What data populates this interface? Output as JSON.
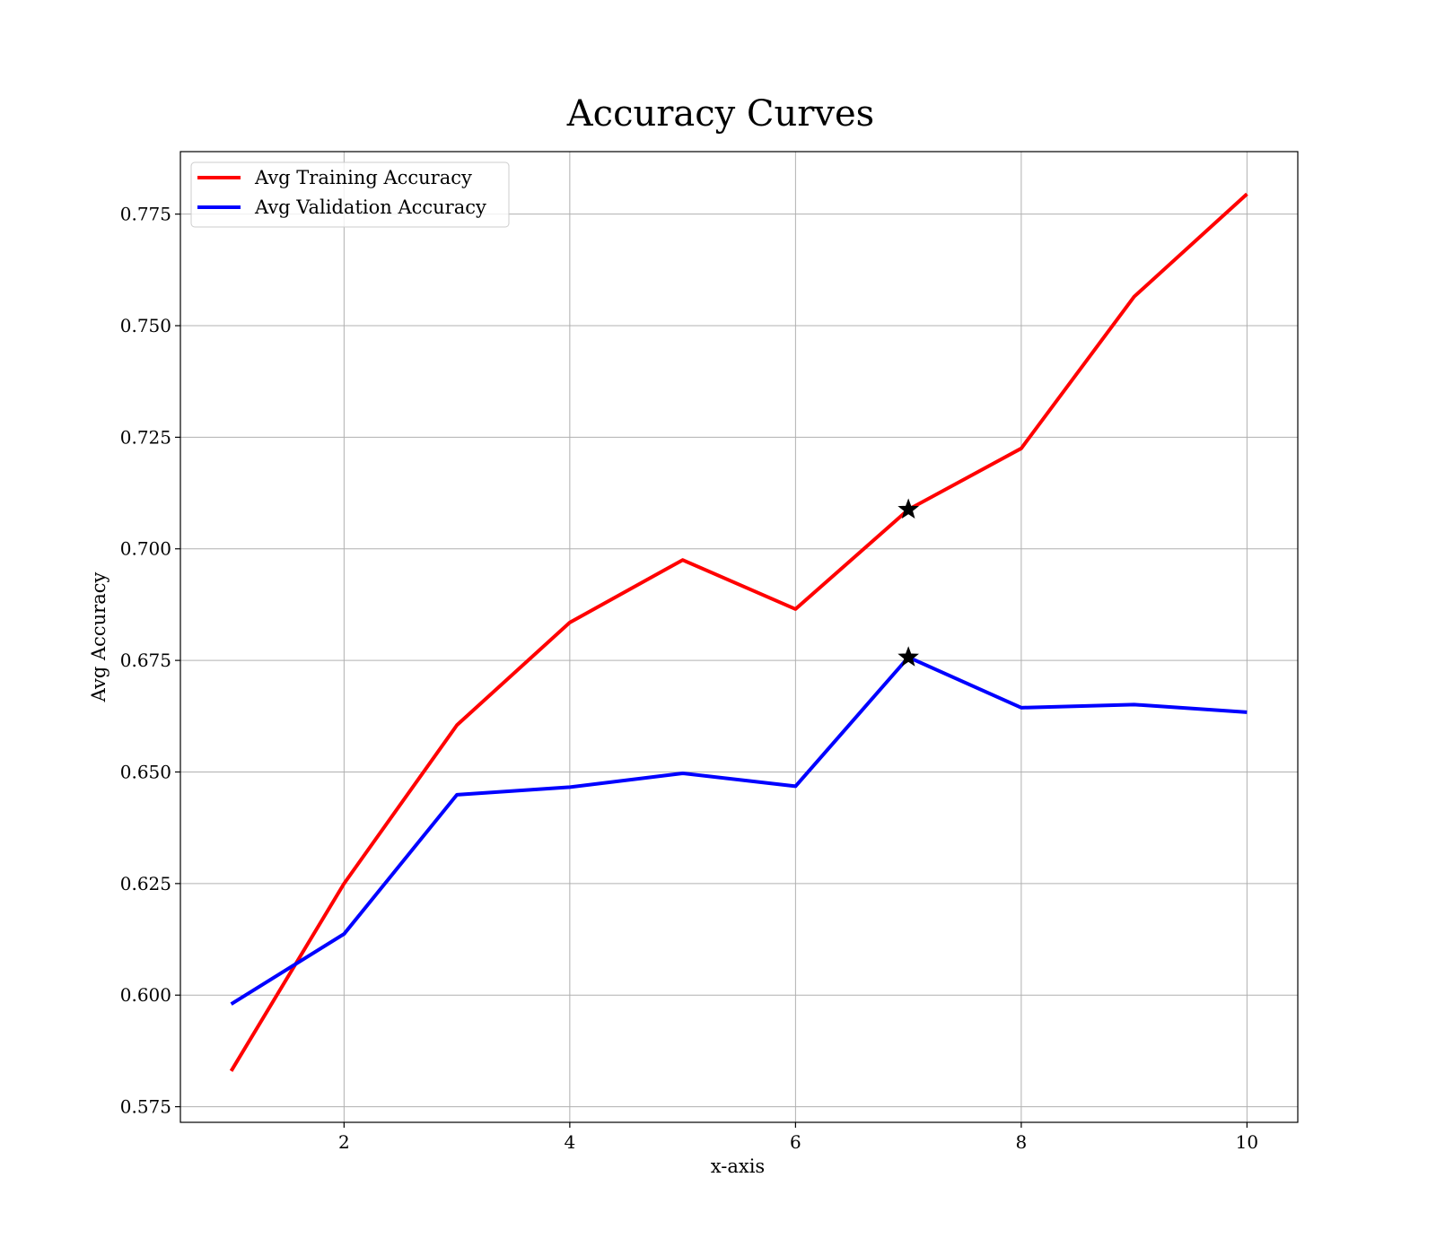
{
  "chart_data": {
    "type": "line",
    "title": "Accuracy Curves",
    "xlabel": "x-axis",
    "ylabel": "Avg Accuracy",
    "xlim": [
      0.55,
      10.45
    ],
    "ylim": [
      0.5715,
      0.789
    ],
    "xticks": [
      2,
      4,
      6,
      8,
      10
    ],
    "yticks": [
      0.575,
      0.6,
      0.625,
      0.65,
      0.675,
      0.7,
      0.725,
      0.75,
      0.775
    ],
    "ytick_labels": [
      "0.575",
      "0.600",
      "0.625",
      "0.650",
      "0.675",
      "0.700",
      "0.725",
      "0.750",
      "0.775"
    ],
    "xtick_labels": [
      "2",
      "4",
      "6",
      "8",
      "10"
    ],
    "grid": true,
    "legend_position": "top-left",
    "x": [
      1,
      2,
      3,
      4,
      5,
      6,
      7,
      8,
      9,
      10
    ],
    "series": [
      {
        "name": "Avg Training Accuracy",
        "color": "#ff0000",
        "values": [
          0.583,
          0.625,
          0.6605,
          0.6835,
          0.6975,
          0.6865,
          0.7088,
          0.7225,
          0.7565,
          0.7795
        ],
        "best_marker": {
          "x": 7,
          "y": 0.7088
        }
      },
      {
        "name": "Avg Validation Accuracy",
        "color": "#0000ff",
        "values": [
          0.598,
          0.6137,
          0.6449,
          0.6466,
          0.6497,
          0.6468,
          0.6757,
          0.6644,
          0.6651,
          0.6634
        ],
        "best_marker": {
          "x": 7,
          "y": 0.6757
        }
      }
    ],
    "marker_symbol": "star",
    "marker_color": "#000000"
  }
}
